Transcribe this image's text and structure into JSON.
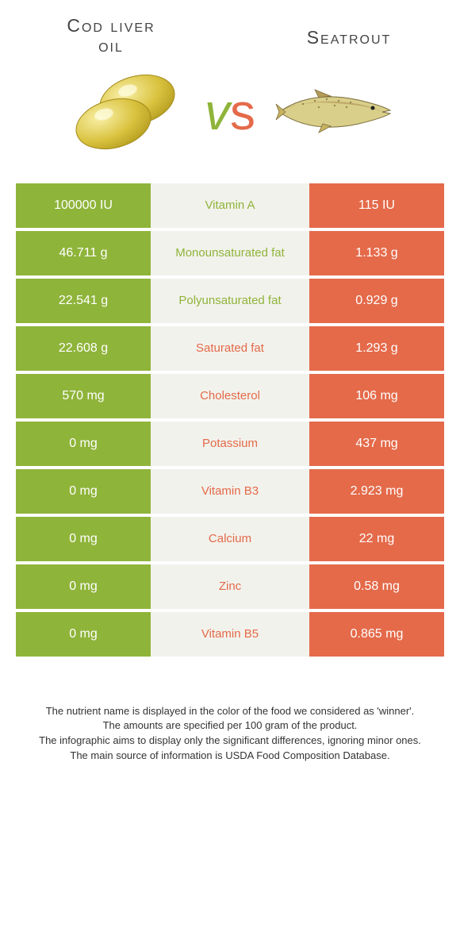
{
  "colors": {
    "left": "#8fb43a",
    "right": "#e46a4a",
    "mid_bg": "#f2f2ec",
    "page_bg": "#ffffff",
    "text": "#333333"
  },
  "header": {
    "left_title_line1": "Cod liver",
    "left_title_line2": "oil",
    "right_title": "Seatrout",
    "vs_v": "v",
    "vs_s": "s"
  },
  "rows": [
    {
      "left": "100000 IU",
      "label": "Vitamin A",
      "right": "115 IU",
      "winner": "left"
    },
    {
      "left": "46.711 g",
      "label": "Monounsaturated fat",
      "right": "1.133 g",
      "winner": "left"
    },
    {
      "left": "22.541 g",
      "label": "Polyunsaturated fat",
      "right": "0.929 g",
      "winner": "left"
    },
    {
      "left": "22.608 g",
      "label": "Saturated fat",
      "right": "1.293 g",
      "winner": "right"
    },
    {
      "left": "570 mg",
      "label": "Cholesterol",
      "right": "106 mg",
      "winner": "right"
    },
    {
      "left": "0 mg",
      "label": "Potassium",
      "right": "437 mg",
      "winner": "right"
    },
    {
      "left": "0 mg",
      "label": "Vitamin B3",
      "right": "2.923 mg",
      "winner": "right"
    },
    {
      "left": "0 mg",
      "label": "Calcium",
      "right": "22 mg",
      "winner": "right"
    },
    {
      "left": "0 mg",
      "label": "Zinc",
      "right": "0.58 mg",
      "winner": "right"
    },
    {
      "left": "0 mg",
      "label": "Vitamin B5",
      "right": "0.865 mg",
      "winner": "right"
    }
  ],
  "footer": {
    "line1": "The nutrient name is displayed in the color of the food we considered as 'winner'.",
    "line2": "The amounts are specified per 100 gram of the product.",
    "line3": "The infographic aims to display only the significant differences, ignoring minor ones.",
    "line4": "The main source of information is USDA Food Composition Database."
  }
}
